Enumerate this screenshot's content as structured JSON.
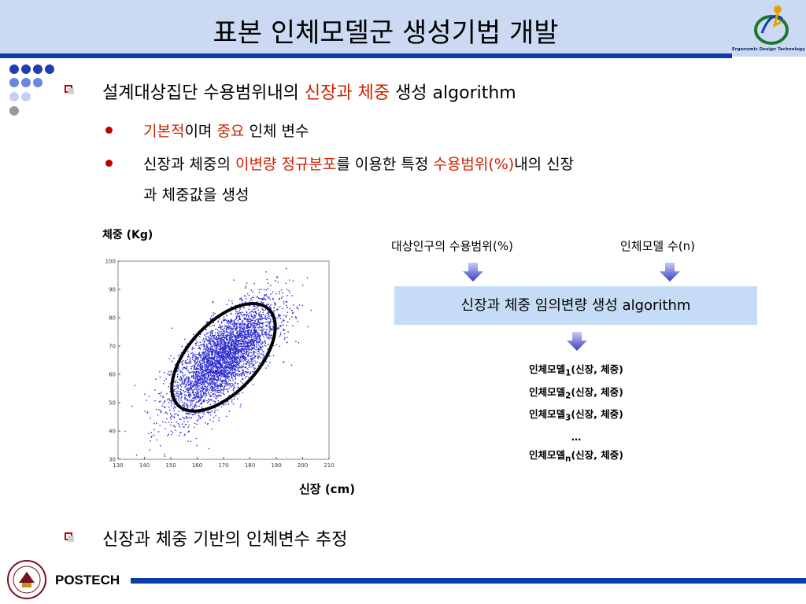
{
  "slide": {
    "title": "표본 인체모델군 생성기법 개발",
    "lab_name": "Ergonomic Design Technology Lab",
    "footer_brand": "POSTECH",
    "colors": {
      "header_bg": "#ccd9f3",
      "accent_blue": "#0a3da8",
      "highlight_red": "#cc2200",
      "box_bg": "#c6dcf6"
    }
  },
  "bullets": {
    "b1": {
      "text": "설계대상집단 수용범위내의 ",
      "red": "신장과 체중",
      "tail": " 생성 algorithm"
    },
    "s1": {
      "red1": "기본적",
      "text1": "이며 ",
      "red2": "중요",
      "text2": " 인체 변수"
    },
    "s2": {
      "text1": "신장과 체중의 ",
      "red1": "이변량 정규분포",
      "text2": "를 이용한 특정 ",
      "red2": "수용범위(%)",
      "text3": "내의 신장",
      "line2": "과 체중값을 생성"
    },
    "b2": {
      "text": "신장과 체중 기반의 인체변수 추정"
    }
  },
  "chart_data": {
    "type": "scatter",
    "ylabel": "체중 (Kg)",
    "xlabel": "신장 (cm)",
    "xlim": [
      130,
      210
    ],
    "ylim": [
      30,
      100
    ],
    "x_ticks": [
      130,
      140,
      150,
      160,
      170,
      180,
      190,
      200,
      210
    ],
    "y_ticks": [
      30,
      40,
      50,
      60,
      70,
      80,
      90,
      100
    ],
    "distribution": {
      "mean_x": 170,
      "mean_y": 66,
      "sd_x": 10,
      "sd_y": 10,
      "correlation": 0.72
    },
    "n_points": 4000,
    "ellipse": {
      "center": [
        170,
        66
      ],
      "annotation": "acceptance range"
    },
    "grid": false,
    "point_color": "#2a2ad0"
  },
  "flow": {
    "input1": "대상인구의 수용범위(%)",
    "input2": "인체모델 수(n)",
    "process": "신장과 체중 임의변량 생성 algorithm",
    "outputs": [
      {
        "name": "인체모델",
        "sub": "1",
        "rest": "(신장, 체중)"
      },
      {
        "name": "인체모델",
        "sub": "2",
        "rest": "(신장, 체중)"
      },
      {
        "name": "인체모델",
        "sub": "3",
        "rest": "(신장, 체중)"
      },
      {
        "name": "…",
        "sub": "",
        "rest": ""
      },
      {
        "name": "인체모델",
        "sub": "n",
        "rest": "(신장, 체중)"
      }
    ]
  }
}
